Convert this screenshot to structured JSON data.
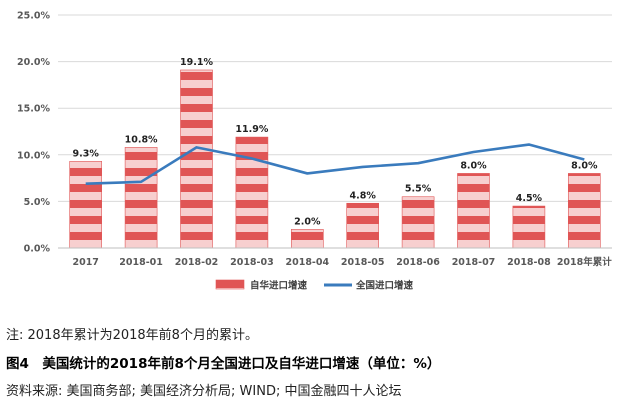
{
  "colors": {
    "bar_red": "#e05555",
    "bar_pink": "#f7cfcf",
    "line_blue": "#3a7bbd",
    "grid": "#d9d9d9"
  },
  "chart_data": {
    "type": "bar",
    "categories": [
      "2017",
      "2018-01",
      "2018-02",
      "2018-03",
      "2018-04",
      "2018-05",
      "2018-06",
      "2018-07",
      "2018-08",
      "2018年累计"
    ],
    "series": [
      {
        "name": "自华进口增速",
        "type": "bar",
        "values": [
          9.3,
          10.8,
          19.1,
          11.9,
          2.0,
          4.8,
          5.5,
          8.0,
          4.5,
          8.0
        ],
        "data_labels": [
          "9.3%",
          "10.8%",
          "19.1%",
          "11.9%",
          "2.0%",
          "4.8%",
          "5.5%",
          "8.0%",
          "4.5%",
          "8.0%"
        ]
      },
      {
        "name": "全国进口增速",
        "type": "line",
        "values": [
          6.9,
          7.1,
          10.8,
          9.6,
          8.0,
          8.7,
          9.1,
          10.3,
          11.1,
          9.5
        ]
      }
    ],
    "ylim": [
      0,
      25
    ],
    "yticks": [
      "0.0%",
      "5.0%",
      "10.0%",
      "15.0%",
      "20.0%",
      "25.0%"
    ],
    "grid": true,
    "legend_position": "bottom"
  },
  "captions": {
    "note": "注: 2018年累计为2018年前8个月的累计。",
    "title": "图4　美国统计的2018年前8个月全国进口及自华进口增速（单位：%）",
    "source": "资料来源: 美国商务部; 美国经济分析局; WIND; 中国金融四十人论坛"
  }
}
